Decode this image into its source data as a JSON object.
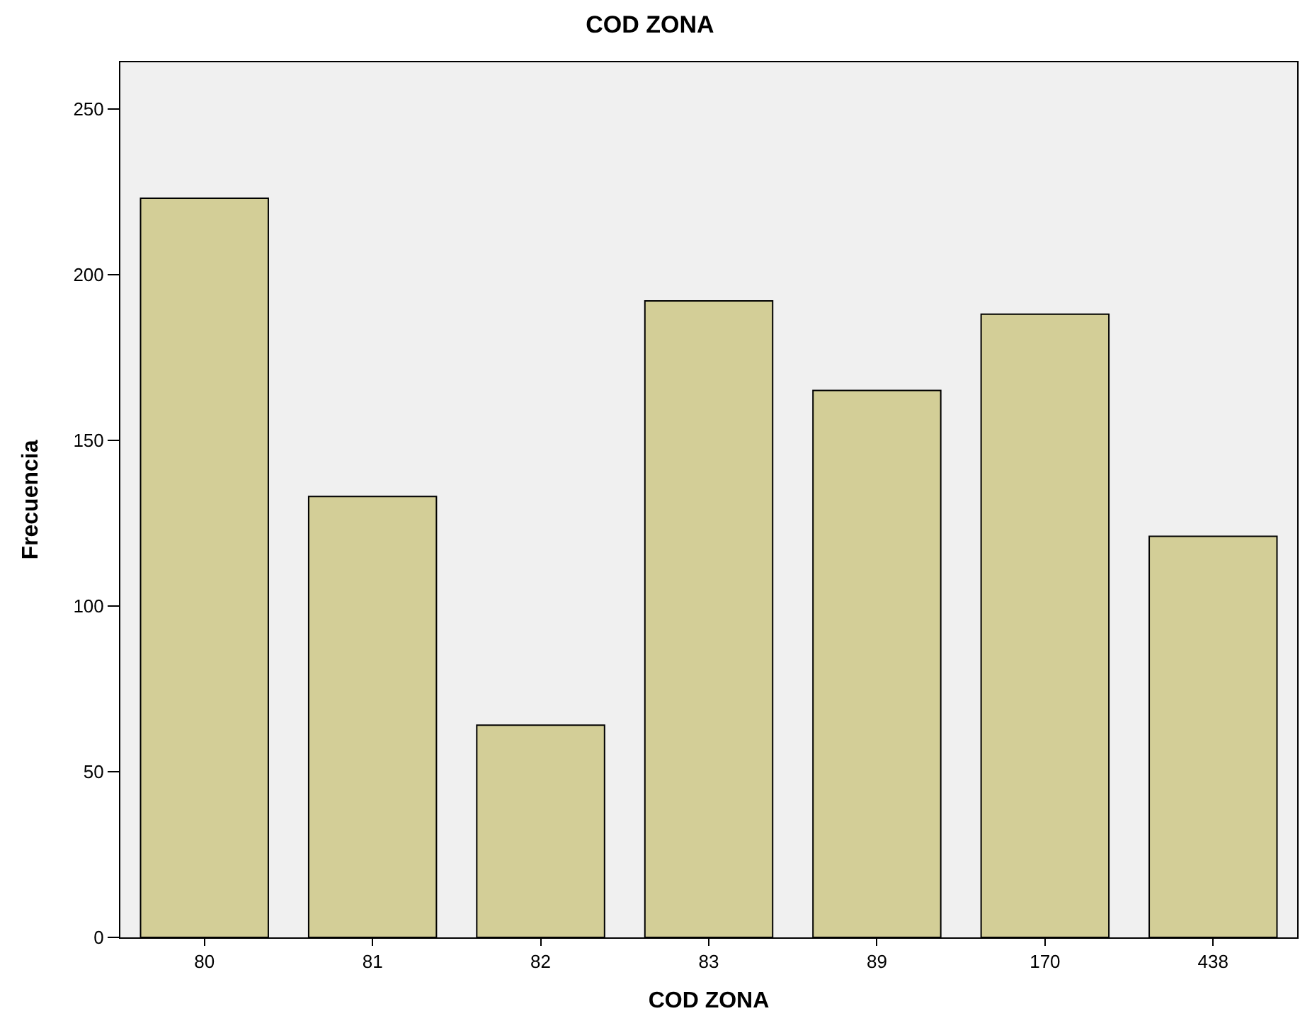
{
  "chart_data": {
    "type": "bar",
    "title": "COD ZONA",
    "xlabel": "COD ZONA",
    "ylabel": "Frecuencia",
    "categories": [
      "80",
      "81",
      "82",
      "83",
      "89",
      "170",
      "438"
    ],
    "values": [
      223,
      133,
      64,
      192,
      165,
      188,
      121
    ],
    "color": "#d3ce97",
    "ylim": [
      0,
      264
    ],
    "yticks": [
      0,
      50,
      100,
      150,
      200,
      250
    ],
    "grid": false,
    "legend": false
  }
}
